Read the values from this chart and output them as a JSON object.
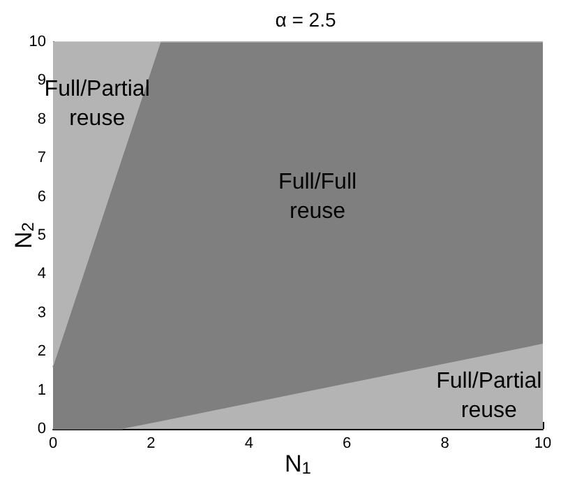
{
  "chart_data": {
    "type": "area",
    "title": "α = 2.5",
    "xlabel": "N$_{1}$",
    "ylabel": "N$_{2}$",
    "stacked": true,
    "x": [
      0,
      1.4,
      2.2,
      10
    ],
    "series": [
      {
        "color": "#b4b4b4",
        "values": [
          0,
          0,
          0.2,
          2.2
        ]
      },
      {
        "color": "#7f7f7f",
        "values": [
          1.6,
          6.95,
          9.8,
          7.8
        ]
      },
      {
        "color": "#b4b4b4",
        "values": [
          8.4,
          3.05,
          0,
          0
        ]
      }
    ],
    "xlim": [
      0,
      10
    ],
    "xticks": [
      0,
      2,
      4,
      6,
      8,
      10
    ],
    "ylim": [
      0,
      10
    ],
    "yticks": [
      0,
      1,
      2,
      3,
      4,
      5,
      6,
      7,
      8,
      9,
      10
    ],
    "grid": false,
    "annotations": [
      "Full/Partial\nreuse",
      "Full/Full\nreuse",
      "Full/Partial\nreuse"
    ]
  }
}
